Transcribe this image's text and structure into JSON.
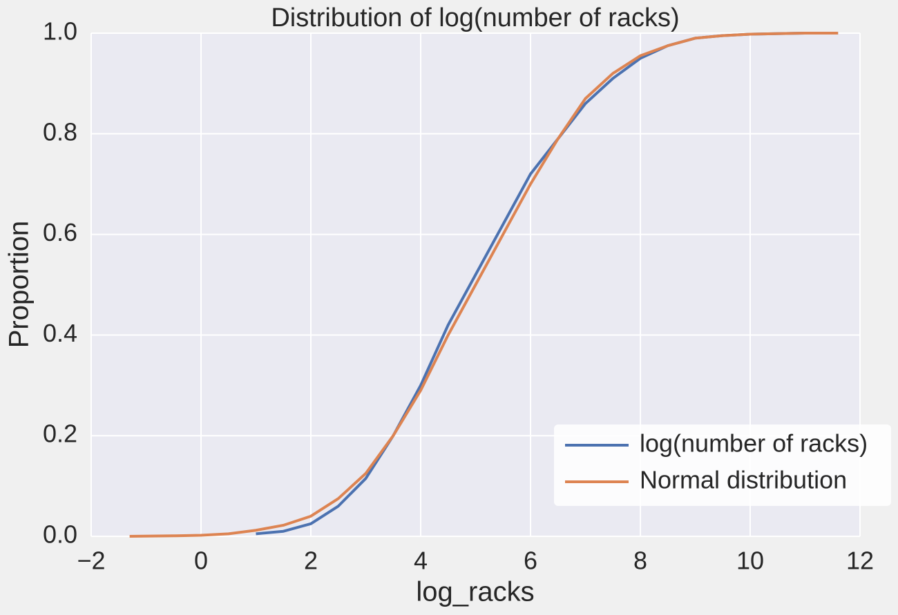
{
  "chart_data": {
    "type": "line",
    "title": "Distribution of log(number of racks)",
    "x_label": "log_racks",
    "y_label": "Proportion",
    "x": [
      -1.3,
      -0.5,
      0,
      0.5,
      1,
      1.5,
      2,
      2.5,
      3,
      3.5,
      4,
      4.5,
      5,
      5.5,
      6,
      6.5,
      7,
      7.5,
      8,
      8.5,
      9,
      9.5,
      10,
      11,
      11.6
    ],
    "series": [
      {
        "name": "log(number of racks)",
        "color": "#4c72b0",
        "values": [
          null,
          null,
          null,
          null,
          0.005,
          0.01,
          0.025,
          0.06,
          0.115,
          0.2,
          0.3,
          0.42,
          0.52,
          0.62,
          0.72,
          0.79,
          0.86,
          0.91,
          0.95,
          0.975,
          0.99,
          0.995,
          0.998,
          1.0,
          1.0
        ]
      },
      {
        "name": "Normal distribution",
        "color": "#dd8452",
        "values": [
          0,
          0.001,
          0.002,
          0.005,
          0.012,
          0.022,
          0.04,
          0.075,
          0.125,
          0.2,
          0.29,
          0.4,
          0.5,
          0.6,
          0.7,
          0.79,
          0.87,
          0.92,
          0.955,
          0.975,
          0.99,
          0.995,
          0.998,
          1.0,
          1.0
        ]
      }
    ],
    "xlim": [
      -2,
      12
    ],
    "xticks": [
      {
        "value": -2,
        "label": "−2"
      },
      0,
      2,
      4,
      6,
      8,
      10,
      12
    ],
    "ylim": [
      0,
      1
    ],
    "yticks": [
      {
        "value": 0,
        "label": "0.0"
      },
      0.2,
      0.4,
      0.6,
      0.8,
      {
        "value": 1,
        "label": "1.0"
      }
    ],
    "grid": true,
    "legend": "lower right"
  }
}
